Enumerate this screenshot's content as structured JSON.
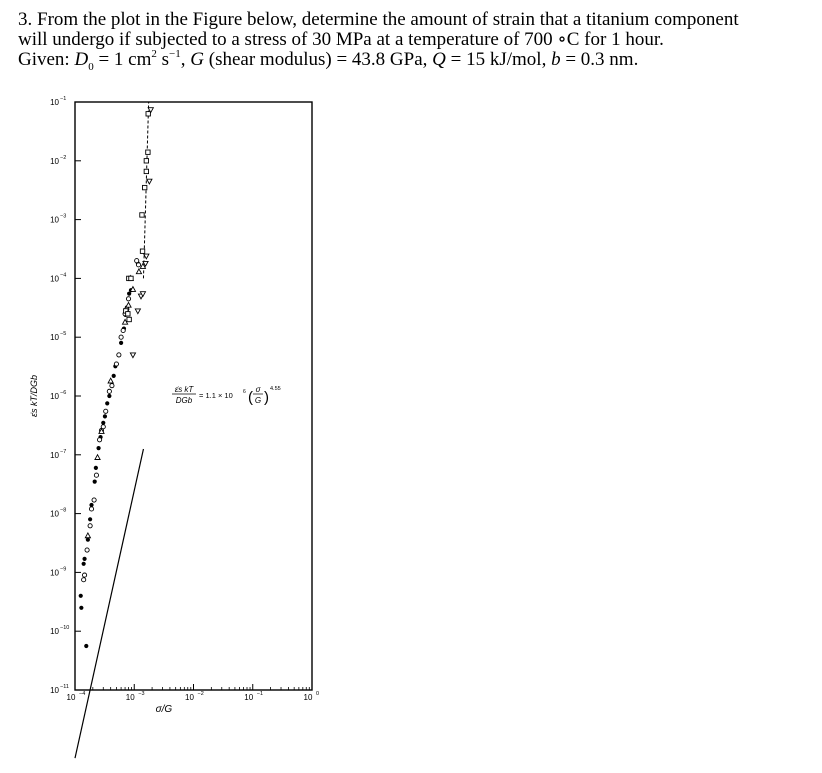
{
  "question": {
    "number": "3.",
    "line1": "From the plot in the Figure below, determine the amount of strain that a titanium component",
    "line2": "will undergo if subjected to a stress of 30 MPa at a temperature of 700 ∘C for 1 hour.",
    "given_label": "Given:",
    "given_d0_sym": "D",
    "given_d0_sub": "0",
    "given_d0_val": " = 1 cm",
    "given_d0_exp1": "2",
    "given_d0_unit2": " s",
    "given_d0_exp2": "−1",
    "given_g_sym": "G",
    "given_g_text": " (shear modulus) = 43.8 GPa, ",
    "given_q_sym": "Q",
    "given_q_text": " = 15 kJ/mol, ",
    "given_b_sym": "b",
    "given_b_text": " = 0.3 nm."
  },
  "chart_data": {
    "type": "scatter",
    "xlabel": "σ/G",
    "ylabel": "ε̇s kT/DGb",
    "x_scale": "log",
    "y_scale": "log",
    "xlim": [
      0.0001,
      1
    ],
    "ylim": [
      1e-11,
      0.1
    ],
    "x_ticks": [
      {
        "value": 0.0001,
        "base": "10",
        "exp": "-4"
      },
      {
        "value": 0.001,
        "base": "10",
        "exp": "-3"
      },
      {
        "value": 0.01,
        "base": "10",
        "exp": "-2"
      },
      {
        "value": 0.1,
        "base": "10",
        "exp": "-1"
      },
      {
        "value": 1,
        "base": "10",
        "exp": "0"
      }
    ],
    "y_ticks": [
      {
        "value": 0.1,
        "base": "10",
        "exp": "-1"
      },
      {
        "value": 0.01,
        "base": "10",
        "exp": "-2"
      },
      {
        "value": 0.001,
        "base": "10",
        "exp": "-3"
      },
      {
        "value": 0.0001,
        "base": "10",
        "exp": "-4"
      },
      {
        "value": 1e-05,
        "base": "10",
        "exp": "-5"
      },
      {
        "value": 1e-06,
        "base": "10",
        "exp": "-6"
      },
      {
        "value": 1e-07,
        "base": "10",
        "exp": "-7"
      },
      {
        "value": 1e-08,
        "base": "10",
        "exp": "-8"
      },
      {
        "value": 1e-09,
        "base": "10",
        "exp": "-9"
      },
      {
        "value": 1e-10,
        "base": "10",
        "exp": "-10"
      },
      {
        "value": 1e-11,
        "base": "10",
        "exp": "-11"
      }
    ],
    "equation": {
      "lhs_top": "ε̇s kT",
      "lhs_bottom": "DGb",
      "rhs_coef": "= 1.1 × 10",
      "rhs_coef_exp": "6",
      "frac_top": "σ",
      "frac_bottom": "G",
      "power": "4.55"
    },
    "fit_line": {
      "coefficient": 1100000,
      "exponent": 4.55,
      "x_range": [
        0.0001,
        0.00143
      ]
    },
    "dashed_extension": {
      "x": [
        0.00143,
        0.00175
      ],
      "y": [
        0.0001,
        0.1
      ]
    },
    "series": [
      {
        "marker": "filled-circle",
        "points": [
          [
            0.000155,
            5.6e-11
          ],
          [
            0.000125,
            4e-10
          ],
          [
            0.000128,
            2.5e-10
          ],
          [
            0.00014,
            1.4e-09
          ],
          [
            0.000145,
            1.7e-09
          ],
          [
            0.000165,
            3.6e-09
          ],
          [
            0.00018,
            8e-09
          ],
          [
            0.00019,
            1.4e-08
          ],
          [
            0.000215,
            3.5e-08
          ],
          [
            0.000225,
            6e-08
          ],
          [
            0.00025,
            1.3e-07
          ],
          [
            0.00027,
            2e-07
          ],
          [
            0.0003,
            3.5e-07
          ],
          [
            0.00032,
            4.5e-07
          ],
          [
            0.00035,
            7.5e-07
          ],
          [
            0.00038,
            1e-06
          ],
          [
            0.00045,
            2.2e-06
          ],
          [
            0.00048,
            3.2e-06
          ],
          [
            0.0006,
            8e-06
          ],
          [
            0.00067,
            1.4e-05
          ],
          [
            0.00071,
            2.4e-05
          ],
          [
            0.00075,
            3.2e-05
          ],
          [
            0.00082,
            5.5e-05
          ],
          [
            0.00088,
            6.3e-05
          ],
          [
            0.00115,
            0.00018
          ]
        ]
      },
      {
        "marker": "open-circle",
        "points": [
          [
            0.00014,
            7.5e-10
          ],
          [
            0.000145,
            9e-10
          ],
          [
            0.00016,
            2.4e-09
          ],
          [
            0.00018,
            6.2e-09
          ],
          [
            0.00019,
            1.2e-08
          ],
          [
            0.00021,
            1.7e-08
          ],
          [
            0.00023,
            4.5e-08
          ],
          [
            0.00026,
            1.8e-07
          ],
          [
            0.00028,
            2.6e-07
          ],
          [
            0.0003,
            3e-07
          ],
          [
            0.00033,
            5.5e-07
          ],
          [
            0.00038,
            1.2e-06
          ],
          [
            0.00042,
            1.5e-06
          ],
          [
            0.0005,
            3.5e-06
          ],
          [
            0.00055,
            5e-06
          ],
          [
            0.0006,
            1e-05
          ],
          [
            0.00065,
            1.3e-05
          ],
          [
            0.0007,
            2.5e-05
          ],
          [
            0.00075,
            3e-05
          ],
          [
            0.0008,
            4.5e-05
          ],
          [
            0.0011,
            0.0002
          ],
          [
            0.00118,
            0.00017
          ]
        ]
      },
      {
        "marker": "open-triangle",
        "points": [
          [
            0.000165,
            4.2e-09
          ],
          [
            0.00024,
            9e-08
          ],
          [
            0.00028,
            2.5e-07
          ],
          [
            0.0004,
            1.8e-06
          ],
          [
            0.0007,
            1.8e-05
          ],
          [
            0.0008,
            3.5e-05
          ],
          [
            0.00087,
            0.0001
          ],
          [
            0.00095,
            6.5e-05
          ],
          [
            0.0014,
            0.00016
          ],
          [
            0.0012,
            0.00013
          ]
        ]
      },
      {
        "marker": "open-square",
        "points": [
          [
            0.00072,
            2.8e-05
          ],
          [
            0.00078,
            2.5e-05
          ],
          [
            0.00082,
            2e-05
          ],
          [
            0.00081,
            0.0001
          ],
          [
            0.00088,
            0.0001
          ],
          [
            0.00138,
            0.00029
          ],
          [
            0.00135,
            0.0012
          ],
          [
            0.0015,
            0.0035
          ],
          [
            0.0016,
            0.0066
          ],
          [
            0.0016,
            0.01
          ],
          [
            0.0017,
            0.014
          ],
          [
            0.00172,
            0.063
          ]
        ]
      },
      {
        "marker": "open-inverted-triangle",
        "points": [
          [
            0.00095,
            5e-06
          ],
          [
            0.0013,
            5e-05
          ],
          [
            0.0014,
            5.5e-05
          ],
          [
            0.00115,
            2.8e-05
          ],
          [
            0.00155,
            0.00018
          ],
          [
            0.0018,
            0.0045
          ],
          [
            0.0019,
            0.074
          ],
          [
            0.0016,
            0.00024
          ]
        ]
      }
    ]
  }
}
